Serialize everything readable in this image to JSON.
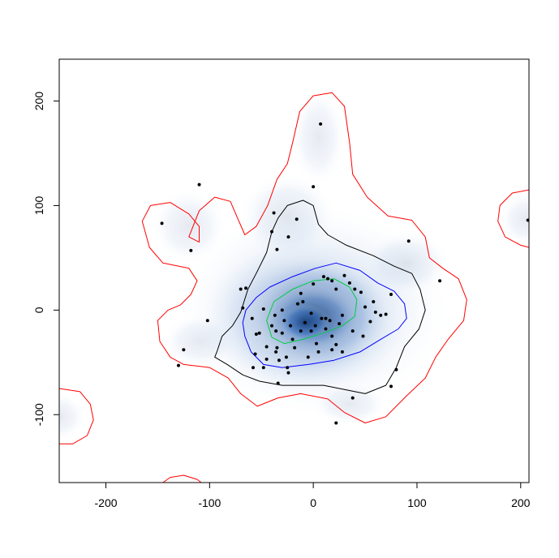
{
  "chart_data": {
    "type": "density-contour",
    "title": "",
    "xlabel": "",
    "ylabel": "",
    "xlim": [
      -245,
      208
    ],
    "ylim": [
      -165,
      240
    ],
    "x_ticks": [
      -200,
      -100,
      0,
      100,
      200
    ],
    "y_ticks": [
      -100,
      0,
      100,
      200
    ],
    "x_tick_labels": [
      "-200",
      "-100",
      "0",
      "100",
      "200"
    ],
    "y_tick_labels": [
      "-100",
      "0",
      "100",
      "200"
    ],
    "grid": false,
    "legend": "none",
    "colors": {
      "density_low": "#ffffff",
      "density_high": "#08306b",
      "contour_outer": "#ff0000",
      "contour_second": "#000000",
      "contour_third": "#0000ff",
      "contour_inner": "#00cc44",
      "points": "#000000"
    },
    "contours": [
      {
        "level": "outer",
        "color": "red",
        "paths": [
          [
            [
              -120,
              70
            ],
            [
              -110,
              95
            ],
            [
              -95,
              108
            ],
            [
              -80,
              104
            ],
            [
              -73,
              88
            ],
            [
              -66,
              72
            ],
            [
              -55,
              80
            ],
            [
              -44,
              100
            ],
            [
              -35,
              125
            ],
            [
              -25,
              140
            ],
            [
              -20,
              160
            ],
            [
              -13,
              190
            ],
            [
              0,
              205
            ],
            [
              18,
              208
            ],
            [
              30,
              195
            ],
            [
              35,
              160
            ],
            [
              38,
              130
            ],
            [
              52,
              108
            ],
            [
              72,
              90
            ],
            [
              95,
              86
            ],
            [
              108,
              70
            ],
            [
              112,
              50
            ],
            [
              125,
              40
            ],
            [
              140,
              30
            ],
            [
              148,
              10
            ],
            [
              145,
              -10
            ],
            [
              130,
              -28
            ],
            [
              118,
              -45
            ],
            [
              108,
              -65
            ],
            [
              90,
              -82
            ],
            [
              70,
              -102
            ],
            [
              50,
              -108
            ],
            [
              30,
              -98
            ],
            [
              14,
              -85
            ],
            [
              -12,
              -80
            ],
            [
              -34,
              -84
            ],
            [
              -54,
              -92
            ],
            [
              -70,
              -80
            ],
            [
              -82,
              -65
            ],
            [
              -100,
              -55
            ],
            [
              -125,
              -52
            ],
            [
              -138,
              -45
            ],
            [
              -148,
              -30
            ],
            [
              -150,
              -10
            ],
            [
              -140,
              0
            ],
            [
              -128,
              5
            ],
            [
              -118,
              15
            ],
            [
              -112,
              28
            ],
            [
              -120,
              40
            ],
            [
              -145,
              45
            ],
            [
              -158,
              60
            ],
            [
              -165,
              85
            ],
            [
              -157,
              100
            ],
            [
              -138,
              103
            ],
            [
              -120,
              92
            ],
            [
              -110,
              80
            ],
            [
              -110,
              65
            ],
            [
              -120,
              70
            ]
          ]
        ]
      },
      {
        "level": "outer-islands",
        "color": "red",
        "paths": [
          [
            [
              208,
              115
            ],
            [
              192,
              112
            ],
            [
              180,
              100
            ],
            [
              178,
              85
            ],
            [
              185,
              70
            ],
            [
              200,
              62
            ],
            [
              208,
              60
            ]
          ],
          [
            [
              -245,
              -75
            ],
            [
              -225,
              -78
            ],
            [
              -215,
              -90
            ],
            [
              -212,
              -105
            ],
            [
              -218,
              -120
            ],
            [
              -232,
              -128
            ],
            [
              -245,
              -128
            ]
          ],
          [
            [
              -145,
              -165
            ],
            [
              -138,
              -160
            ],
            [
              -125,
              -158
            ],
            [
              -112,
              -162
            ],
            [
              -108,
              -165
            ]
          ]
        ]
      },
      {
        "level": "second",
        "color": "black",
        "paths": [
          [
            [
              -93,
              -40
            ],
            [
              -88,
              -25
            ],
            [
              -78,
              -15
            ],
            [
              -70,
              -2
            ],
            [
              -63,
              20
            ],
            [
              -55,
              35
            ],
            [
              -45,
              55
            ],
            [
              -40,
              75
            ],
            [
              -34,
              88
            ],
            [
              -25,
              100
            ],
            [
              -10,
              105
            ],
            [
              0,
              100
            ],
            [
              5,
              82
            ],
            [
              14,
              72
            ],
            [
              32,
              62
            ],
            [
              58,
              52
            ],
            [
              78,
              42
            ],
            [
              95,
              35
            ],
            [
              103,
              20
            ],
            [
              108,
              0
            ],
            [
              102,
              -18
            ],
            [
              88,
              -35
            ],
            [
              80,
              -55
            ],
            [
              70,
              -72
            ],
            [
              50,
              -80
            ],
            [
              30,
              -76
            ],
            [
              10,
              -72
            ],
            [
              -10,
              -72
            ],
            [
              -30,
              -72
            ],
            [
              -52,
              -68
            ],
            [
              -68,
              -62
            ],
            [
              -83,
              -52
            ],
            [
              -95,
              -45
            ],
            [
              -93,
              -40
            ]
          ]
        ]
      },
      {
        "level": "third",
        "color": "blue",
        "paths": [
          [
            [
              -65,
              0
            ],
            [
              -55,
              12
            ],
            [
              -42,
              22
            ],
            [
              -20,
              32
            ],
            [
              2,
              40
            ],
            [
              22,
              45
            ],
            [
              45,
              38
            ],
            [
              62,
              26
            ],
            [
              78,
              18
            ],
            [
              88,
              6
            ],
            [
              90,
              -8
            ],
            [
              82,
              -18
            ],
            [
              65,
              -28
            ],
            [
              45,
              -40
            ],
            [
              20,
              -48
            ],
            [
              -5,
              -52
            ],
            [
              -30,
              -55
            ],
            [
              -48,
              -52
            ],
            [
              -60,
              -40
            ],
            [
              -66,
              -25
            ],
            [
              -68,
              -12
            ],
            [
              -65,
              0
            ]
          ]
        ]
      },
      {
        "level": "inner",
        "color": "green",
        "paths": [
          [
            [
              -45,
              -10
            ],
            [
              -38,
              8
            ],
            [
              -20,
              20
            ],
            [
              0,
              28
            ],
            [
              20,
              30
            ],
            [
              35,
              22
            ],
            [
              42,
              10
            ],
            [
              40,
              -6
            ],
            [
              28,
              -15
            ],
            [
              10,
              -22
            ],
            [
              -10,
              -28
            ],
            [
              -28,
              -32
            ],
            [
              -40,
              -26
            ],
            [
              -45,
              -10
            ]
          ]
        ]
      }
    ],
    "density_blobs": [
      {
        "x": 0,
        "y": 0,
        "rx": 130,
        "ry": 100,
        "opacity": 0.15
      },
      {
        "x": -10,
        "y": -8,
        "rx": 95,
        "ry": 72,
        "opacity": 0.25
      },
      {
        "x": 5,
        "y": -5,
        "rx": 70,
        "ry": 55,
        "opacity": 0.35
      },
      {
        "x": 0,
        "y": -8,
        "rx": 45,
        "ry": 32,
        "opacity": 0.55
      },
      {
        "x": -8,
        "y": -12,
        "rx": 25,
        "ry": 18,
        "opacity": 0.7
      },
      {
        "x": -25,
        "y": 90,
        "rx": 45,
        "ry": 40,
        "opacity": 0.12
      },
      {
        "x": 5,
        "y": 165,
        "rx": 25,
        "ry": 45,
        "opacity": 0.1
      },
      {
        "x": -120,
        "y": 80,
        "rx": 35,
        "ry": 35,
        "opacity": 0.1
      },
      {
        "x": 90,
        "y": 45,
        "rx": 40,
        "ry": 30,
        "opacity": 0.12
      },
      {
        "x": -110,
        "y": -30,
        "rx": 35,
        "ry": 25,
        "opacity": 0.1
      },
      {
        "x": 35,
        "y": -90,
        "rx": 35,
        "ry": 20,
        "opacity": 0.1
      },
      {
        "x": 205,
        "y": 87,
        "rx": 25,
        "ry": 25,
        "opacity": 0.1
      },
      {
        "x": -245,
        "y": -102,
        "rx": 25,
        "ry": 22,
        "opacity": 0.1
      }
    ],
    "points": {
      "x": [
        7,
        -110,
        0,
        -146,
        -38,
        -16,
        -40,
        -118,
        -35,
        -24,
        92,
        122,
        207,
        -65,
        -68,
        -59,
        -70,
        -55,
        -48,
        -52,
        -30,
        -37,
        -28,
        -15,
        -10,
        -12,
        -2,
        0,
        10,
        14,
        18,
        22,
        30,
        35,
        40,
        46,
        50,
        58,
        60,
        65,
        75,
        70,
        -40,
        -36,
        -30,
        -22,
        -20,
        -8,
        -2,
        3,
        8,
        12,
        18,
        25,
        28,
        -45,
        -36,
        -33,
        -25,
        -24,
        -5,
        5,
        18,
        22,
        -56,
        -58,
        -48,
        -45,
        -34,
        -26,
        -18,
        -12,
        2,
        12,
        16,
        28,
        38,
        48,
        55,
        80,
        75,
        38,
        22,
        -125,
        -130,
        -102,
        -35
      ],
      "y": [
        178,
        120,
        118,
        83,
        93,
        87,
        75,
        57,
        58,
        70,
        66,
        28,
        86,
        21,
        2,
        -8,
        20,
        -23,
        1,
        -22,
        0,
        -5,
        -10,
        6,
        8,
        16,
        -3,
        25,
        32,
        30,
        28,
        20,
        33,
        26,
        20,
        17,
        3,
        8,
        -2,
        -5,
        15,
        -4,
        -15,
        -20,
        -22,
        -15,
        -28,
        -12,
        -20,
        -32,
        -8,
        -18,
        -25,
        -13,
        -40,
        -35,
        -40,
        -48,
        -55,
        -60,
        -45,
        -40,
        -38,
        -33,
        -42,
        -55,
        -55,
        -47,
        -70,
        -45,
        -36,
        -20,
        -15,
        -8,
        -10,
        -5,
        -20,
        -25,
        -11,
        -57,
        -73,
        -84,
        -108,
        -38,
        -53,
        -10,
        -36
      ]
    }
  }
}
